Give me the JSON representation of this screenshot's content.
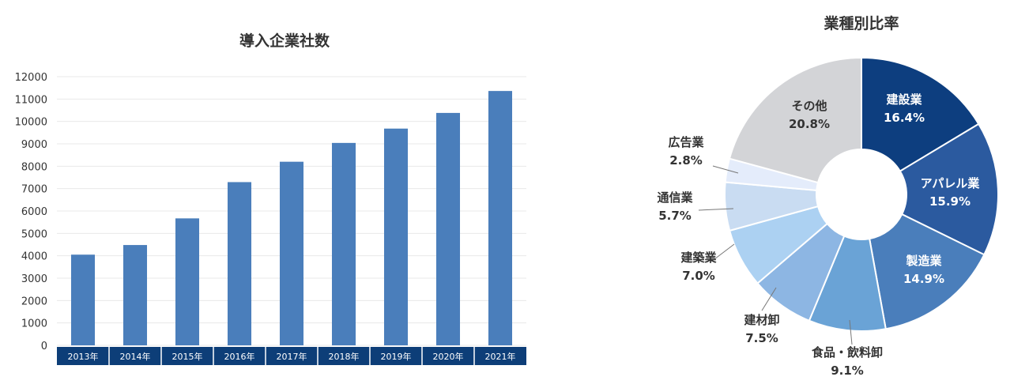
{
  "chart_data": [
    {
      "type": "bar",
      "title": "導入企業社数",
      "categories": [
        "2013年",
        "2014年",
        "2015年",
        "2016年",
        "2017年",
        "2018年",
        "2019年",
        "2020年",
        "2021年"
      ],
      "values": [
        4050,
        4480,
        5670,
        7290,
        8200,
        9040,
        9680,
        10380,
        11360
      ],
      "yticks": [
        "0",
        "1000",
        "2000",
        "3000",
        "4000",
        "5000",
        "6000",
        "7000",
        "8000",
        "9000",
        "10000",
        "11000",
        "12000"
      ],
      "ylim": [
        0,
        12000
      ],
      "grid": true,
      "colors": {
        "bar": "#4a7ebb",
        "category_band": "#0d3e78",
        "grid": "#e8e8e8"
      }
    },
    {
      "type": "pie",
      "title": "業種別比率",
      "donut": true,
      "slices": [
        {
          "name": "建設業",
          "value": 16.4,
          "label": "16.4%",
          "color": "#0d3e7f",
          "label_inside": true
        },
        {
          "name": "アパレル業",
          "value": 15.9,
          "label": "15.9%",
          "color": "#2b5a9f",
          "label_inside": true
        },
        {
          "name": "製造業",
          "value": 14.9,
          "label": "14.9%",
          "color": "#4a7ebb",
          "label_inside": true
        },
        {
          "name": "食品・飲料卸",
          "value": 9.1,
          "label": "9.1%",
          "color": "#6aa3d6",
          "label_inside": false
        },
        {
          "name": "建材卸",
          "value": 7.5,
          "label": "7.5%",
          "color": "#8db6e3",
          "label_inside": false
        },
        {
          "name": "建築業",
          "value": 7.0,
          "label": "7.0%",
          "color": "#acd1f2",
          "label_inside": false
        },
        {
          "name": "通信業",
          "value": 5.7,
          "label": "5.7%",
          "color": "#c9dcf2",
          "label_inside": false
        },
        {
          "name": "広告業",
          "value": 2.8,
          "label": "2.8%",
          "color": "#e4ecfb",
          "label_inside": false
        },
        {
          "name": "その他",
          "value": 20.8,
          "label": "20.8%",
          "color": "#d3d4d7",
          "label_inside": true
        }
      ]
    }
  ]
}
